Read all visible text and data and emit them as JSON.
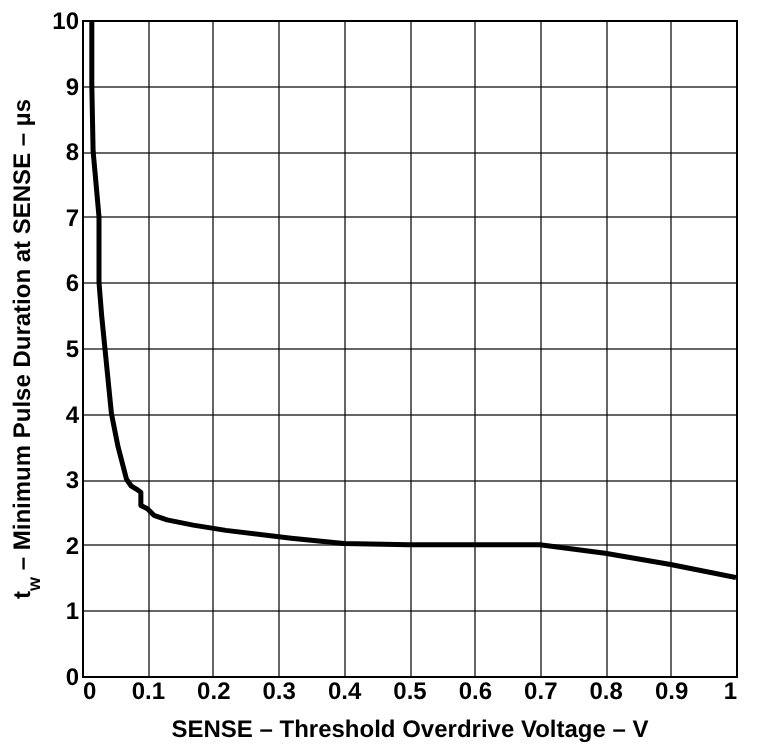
{
  "chart_data": {
    "type": "line",
    "xlabel": "SENSE – Threshold Overdrive Voltage – V",
    "ylabel": "t$_{w}$ – Minimum Pulse Duration at SENSE – µs",
    "x": [
      0.015,
      0.015,
      0.017,
      0.026,
      0.026,
      0.03,
      0.035,
      0.045,
      0.055,
      0.068,
      0.075,
      0.083,
      0.09,
      0.09,
      0.1,
      0.11,
      0.13,
      0.17,
      0.22,
      0.32,
      0.4,
      0.5,
      0.7,
      0.8,
      0.9,
      1.0
    ],
    "series": [
      {
        "color": "#000000",
        "values": [
          10,
          9,
          8,
          7,
          6,
          5.5,
          5,
          4,
          3.5,
          3,
          2.9,
          2.85,
          2.8,
          2.6,
          2.55,
          2.45,
          2.38,
          2.3,
          2.22,
          2.1,
          2.02,
          2.0,
          2.0,
          1.87,
          1.7,
          1.5
        ]
      }
    ],
    "xlim": [
      0,
      1
    ],
    "xticks": [
      0,
      0.1,
      0.2,
      0.3,
      0.4,
      0.5,
      0.6,
      0.7,
      0.8,
      0.9,
      1
    ],
    "ylim": [
      0,
      10
    ],
    "yticks": [
      0,
      1,
      2,
      3,
      4,
      5,
      6,
      7,
      8,
      9,
      10
    ],
    "grid": true,
    "marker": "none",
    "line_style": "solid"
  }
}
